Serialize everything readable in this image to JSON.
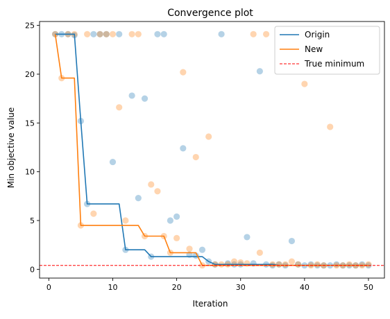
{
  "chart_data": {
    "type": "line",
    "title": "Convergence plot",
    "xlabel": "Iteration",
    "ylabel": "Min objective value",
    "xlim": [
      -1.45,
      52.5
    ],
    "ylim": [
      -0.9,
      25.4
    ],
    "xticks": [
      0,
      10,
      20,
      30,
      40,
      50
    ],
    "yticks": [
      0,
      5,
      10,
      15,
      20,
      25
    ],
    "legend_position": "top-right",
    "grid": false,
    "true_minimum": 0.4,
    "series": [
      {
        "name": "Origin",
        "color": "#1f77b4",
        "line": [
          [
            1,
            24.1
          ],
          [
            2,
            24.1
          ],
          [
            3,
            24.1
          ],
          [
            4,
            24.1
          ],
          [
            5,
            15.2
          ],
          [
            6,
            6.7
          ],
          [
            7,
            6.7
          ],
          [
            8,
            6.7
          ],
          [
            9,
            6.7
          ],
          [
            10,
            6.7
          ],
          [
            11,
            6.7
          ],
          [
            12,
            2.0
          ],
          [
            13,
            2.0
          ],
          [
            14,
            2.0
          ],
          [
            15,
            2.0
          ],
          [
            16,
            1.3
          ],
          [
            17,
            1.3
          ],
          [
            18,
            1.3
          ],
          [
            19,
            1.3
          ],
          [
            20,
            1.3
          ],
          [
            21,
            1.3
          ],
          [
            22,
            1.3
          ],
          [
            23,
            1.3
          ],
          [
            24,
            1.3
          ],
          [
            25,
            0.8
          ],
          [
            26,
            0.5
          ],
          [
            27,
            0.5
          ],
          [
            28,
            0.5
          ],
          [
            29,
            0.5
          ],
          [
            30,
            0.5
          ],
          [
            31,
            0.5
          ],
          [
            32,
            0.5
          ],
          [
            33,
            0.5
          ],
          [
            34,
            0.5
          ],
          [
            35,
            0.5
          ],
          [
            36,
            0.4
          ],
          [
            37,
            0.4
          ],
          [
            38,
            0.4
          ],
          [
            39,
            0.4
          ],
          [
            40,
            0.4
          ],
          [
            41,
            0.4
          ],
          [
            42,
            0.4
          ],
          [
            43,
            0.4
          ],
          [
            44,
            0.4
          ],
          [
            45,
            0.4
          ],
          [
            46,
            0.4
          ],
          [
            47,
            0.4
          ],
          [
            48,
            0.4
          ],
          [
            49,
            0.4
          ],
          [
            50,
            0.4
          ]
        ],
        "points": [
          [
            1,
            24.1
          ],
          [
            2,
            24.1
          ],
          [
            3,
            24.1
          ],
          [
            4,
            24.0
          ],
          [
            5,
            15.2
          ],
          [
            6,
            6.7
          ],
          [
            7,
            24.1
          ],
          [
            8,
            24.1
          ],
          [
            9,
            24.1
          ],
          [
            10,
            11.0
          ],
          [
            11,
            24.1
          ],
          [
            12,
            2.0
          ],
          [
            13,
            17.8
          ],
          [
            14,
            7.3
          ],
          [
            15,
            17.5
          ],
          [
            16,
            1.3
          ],
          [
            17,
            24.1
          ],
          [
            18,
            24.1
          ],
          [
            19,
            5.0
          ],
          [
            20,
            5.4
          ],
          [
            21,
            12.4
          ],
          [
            22,
            1.5
          ],
          [
            23,
            1.4
          ],
          [
            24,
            2.0
          ],
          [
            25,
            0.8
          ],
          [
            26,
            0.5
          ],
          [
            27,
            24.1
          ],
          [
            28,
            0.6
          ],
          [
            29,
            0.5
          ],
          [
            30,
            0.5
          ],
          [
            31,
            3.3
          ],
          [
            32,
            0.6
          ],
          [
            33,
            20.3
          ],
          [
            34,
            0.5
          ],
          [
            35,
            0.4
          ],
          [
            36,
            0.5
          ],
          [
            37,
            0.4
          ],
          [
            38,
            2.9
          ],
          [
            39,
            0.5
          ],
          [
            40,
            0.4
          ],
          [
            41,
            0.5
          ],
          [
            42,
            0.4
          ],
          [
            43,
            0.4
          ],
          [
            44,
            0.4
          ],
          [
            45,
            0.5
          ],
          [
            46,
            0.4
          ],
          [
            47,
            0.4
          ],
          [
            48,
            0.4
          ],
          [
            49,
            0.5
          ],
          [
            50,
            0.4
          ]
        ]
      },
      {
        "name": "New",
        "color": "#ff7f0e",
        "line": [
          [
            1,
            24.1
          ],
          [
            2,
            19.6
          ],
          [
            3,
            19.6
          ],
          [
            4,
            19.6
          ],
          [
            5,
            4.5
          ],
          [
            6,
            4.5
          ],
          [
            7,
            4.5
          ],
          [
            8,
            4.5
          ],
          [
            9,
            4.5
          ],
          [
            10,
            4.5
          ],
          [
            11,
            4.5
          ],
          [
            12,
            4.5
          ],
          [
            13,
            4.5
          ],
          [
            14,
            4.5
          ],
          [
            15,
            3.4
          ],
          [
            16,
            3.4
          ],
          [
            17,
            3.4
          ],
          [
            18,
            3.4
          ],
          [
            19,
            1.7
          ],
          [
            20,
            1.7
          ],
          [
            21,
            1.7
          ],
          [
            22,
            1.7
          ],
          [
            23,
            1.7
          ],
          [
            24,
            0.4
          ],
          [
            25,
            0.4
          ],
          [
            26,
            0.4
          ],
          [
            27,
            0.4
          ],
          [
            28,
            0.4
          ],
          [
            29,
            0.4
          ],
          [
            30,
            0.4
          ],
          [
            31,
            0.4
          ],
          [
            32,
            0.4
          ],
          [
            33,
            0.4
          ],
          [
            34,
            0.4
          ],
          [
            35,
            0.4
          ],
          [
            36,
            0.4
          ],
          [
            37,
            0.4
          ],
          [
            38,
            0.4
          ],
          [
            39,
            0.4
          ],
          [
            40,
            0.4
          ],
          [
            41,
            0.4
          ],
          [
            42,
            0.4
          ],
          [
            43,
            0.4
          ],
          [
            44,
            0.4
          ],
          [
            45,
            0.4
          ],
          [
            46,
            0.4
          ],
          [
            47,
            0.4
          ],
          [
            48,
            0.4
          ],
          [
            49,
            0.4
          ],
          [
            50,
            0.4
          ]
        ],
        "points": [
          [
            1,
            24.1
          ],
          [
            2,
            19.6
          ],
          [
            3,
            24.1
          ],
          [
            4,
            24.1
          ],
          [
            5,
            4.5
          ],
          [
            6,
            24.1
          ],
          [
            7,
            5.7
          ],
          [
            8,
            24.1
          ],
          [
            9,
            24.1
          ],
          [
            10,
            24.1
          ],
          [
            11,
            16.6
          ],
          [
            12,
            5.0
          ],
          [
            13,
            24.1
          ],
          [
            14,
            24.1
          ],
          [
            15,
            3.4
          ],
          [
            16,
            8.7
          ],
          [
            17,
            8.0
          ],
          [
            18,
            3.4
          ],
          [
            19,
            1.7
          ],
          [
            20,
            3.2
          ],
          [
            21,
            20.2
          ],
          [
            22,
            2.1
          ],
          [
            23,
            11.5
          ],
          [
            24,
            0.4
          ],
          [
            25,
            13.6
          ],
          [
            26,
            0.5
          ],
          [
            27,
            0.5
          ],
          [
            28,
            0.5
          ],
          [
            29,
            0.8
          ],
          [
            30,
            0.7
          ],
          [
            31,
            0.6
          ],
          [
            32,
            24.1
          ],
          [
            33,
            1.7
          ],
          [
            34,
            24.1
          ],
          [
            35,
            0.5
          ],
          [
            36,
            0.5
          ],
          [
            37,
            0.5
          ],
          [
            38,
            0.8
          ],
          [
            39,
            0.5
          ],
          [
            40,
            19.0
          ],
          [
            41,
            0.4
          ],
          [
            42,
            0.5
          ],
          [
            43,
            0.4
          ],
          [
            44,
            14.6
          ],
          [
            45,
            0.4
          ],
          [
            46,
            0.4
          ],
          [
            47,
            0.5
          ],
          [
            48,
            0.4
          ],
          [
            49,
            0.4
          ],
          [
            50,
            0.5
          ]
        ]
      }
    ],
    "reference_line": {
      "name": "True minimum",
      "color": "#ff0000",
      "style": "dashed"
    }
  }
}
